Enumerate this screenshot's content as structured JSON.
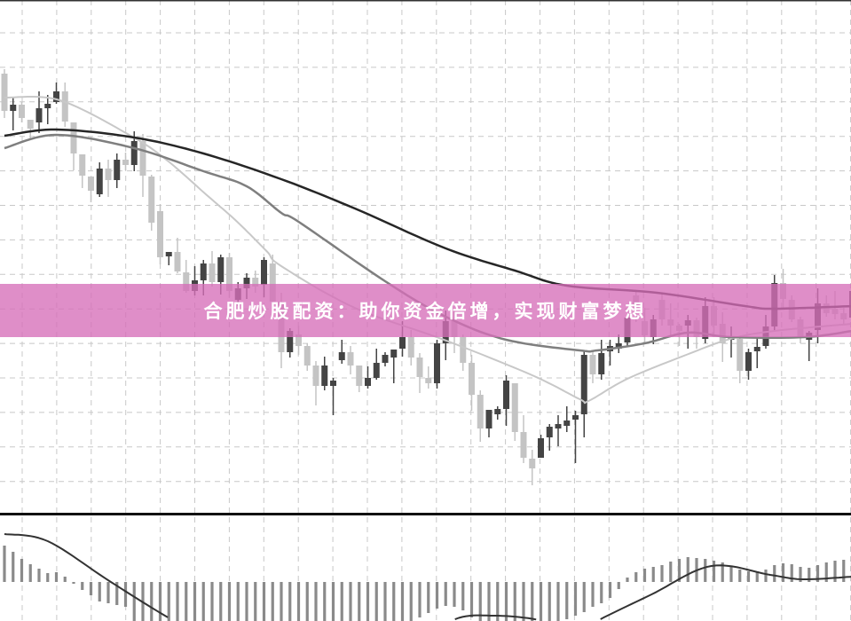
{
  "banner": {
    "text": "合肥炒股配资：助你资金倍增，实现财富梦想",
    "color": "#d66eb9"
  },
  "colors": {
    "bull": "#444444",
    "bear": "#c4c4c4",
    "ma_fast": "#c8c8c8",
    "ma_mid": "#7f7f7f",
    "ma_slow": "#262626",
    "hist": "#8a8a8a",
    "signal": "#333333",
    "grid": "#c8c8c8"
  },
  "chart_data": {
    "type": "candlestick",
    "title": "",
    "xlabel": "",
    "ylabel": "",
    "grid": true,
    "ylim": [
      2.2,
      60
    ],
    "candles_ohlc": [
      [
        51.7,
        52.2,
        46.7,
        47.5
      ],
      [
        47.5,
        49.0,
        45.3,
        48.2
      ],
      [
        48.2,
        48.5,
        46.2,
        46.7
      ],
      [
        46.5,
        46.5,
        44.3,
        45.5
      ],
      [
        46.2,
        49.7,
        45.0,
        47.8
      ],
      [
        47.8,
        49.3,
        46.0,
        48.3
      ],
      [
        48.5,
        50.7,
        48.3,
        49.7
      ],
      [
        49.7,
        50.7,
        45.7,
        46.3
      ],
      [
        46.2,
        46.2,
        40.8,
        42.7
      ],
      [
        42.6,
        42.6,
        38.8,
        40.2
      ],
      [
        40.1,
        40.1,
        37.2,
        38.5
      ],
      [
        38.1,
        41.7,
        37.8,
        41.0
      ],
      [
        41.0,
        42.0,
        37.8,
        39.7
      ],
      [
        39.7,
        42.7,
        38.8,
        42.0
      ],
      [
        42.0,
        42.8,
        40.8,
        41.4
      ],
      [
        41.4,
        45.2,
        40.7,
        44.1
      ],
      [
        44.1,
        44.9,
        37.8,
        40.2
      ],
      [
        40.1,
        40.3,
        34.0,
        34.9
      ],
      [
        36.2,
        37.0,
        30.2,
        31.0
      ],
      [
        31.1,
        31.6,
        30.1,
        31.6
      ],
      [
        31.6,
        33.2,
        29.2,
        29.4
      ],
      [
        29.3,
        30.7,
        27.0,
        27.2
      ],
      [
        27.2,
        30.0,
        26.7,
        28.4
      ],
      [
        28.4,
        30.7,
        26.7,
        30.3
      ],
      [
        30.3,
        31.7,
        27.7,
        28.2
      ],
      [
        28.2,
        31.3,
        26.8,
        31.0
      ],
      [
        31.0,
        31.5,
        26.5,
        27.2
      ],
      [
        26.2,
        28.2,
        25.5,
        27.5
      ],
      [
        27.5,
        29.2,
        26.3,
        28.7
      ],
      [
        28.7,
        29.5,
        27.0,
        27.7
      ],
      [
        27.9,
        31.0,
        26.5,
        30.7
      ],
      [
        30.3,
        31.3,
        25.0,
        26.0
      ],
      [
        26.0,
        27.0,
        18.5,
        20.3
      ],
      [
        20.3,
        23.0,
        19.7,
        22.7
      ],
      [
        22.3,
        23.3,
        20.0,
        21.0
      ],
      [
        21.0,
        21.3,
        18.2,
        18.8
      ],
      [
        18.8,
        19.3,
        14.3,
        16.5
      ],
      [
        16.5,
        19.8,
        16.0,
        18.8
      ],
      [
        16.5,
        17.4,
        13.2,
        17.1
      ],
      [
        19.4,
        21.7,
        19.0,
        20.3
      ],
      [
        20.3,
        21.0,
        17.8,
        18.8
      ],
      [
        18.8,
        18.8,
        15.8,
        16.5
      ],
      [
        16.5,
        18.7,
        16.2,
        17.4
      ],
      [
        17.4,
        20.7,
        17.2,
        19.1
      ],
      [
        19.1,
        20.3,
        18.7,
        20.0
      ],
      [
        19.7,
        20.6,
        16.8,
        20.6
      ],
      [
        20.7,
        23.8,
        19.8,
        22.0
      ],
      [
        22.0,
        22.8,
        18.8,
        19.7
      ],
      [
        19.7,
        20.2,
        15.7,
        17.5
      ],
      [
        17.4,
        18.7,
        16.2,
        16.8
      ],
      [
        16.8,
        21.7,
        16.2,
        21.3
      ],
      [
        21.3,
        25.0,
        19.4,
        23.8
      ],
      [
        23.8,
        25.0,
        20.2,
        22.0
      ],
      [
        22.0,
        22.3,
        18.2,
        19.1
      ],
      [
        19.1,
        20.0,
        13.7,
        15.5
      ],
      [
        15.5,
        16.0,
        10.2,
        11.7
      ],
      [
        11.7,
        13.8,
        10.7,
        13.8
      ],
      [
        13.3,
        14.2,
        12.7,
        13.9
      ],
      [
        13.9,
        17.7,
        12.0,
        17.1
      ],
      [
        16.8,
        16.8,
        10.3,
        11.3
      ],
      [
        11.3,
        13.2,
        7.8,
        8.4
      ],
      [
        8.3,
        9.3,
        5.3,
        7.2
      ],
      [
        8.4,
        11.0,
        8.4,
        10.6
      ],
      [
        10.7,
        12.2,
        9.2,
        11.9
      ],
      [
        11.7,
        13.2,
        9.7,
        12.2
      ],
      [
        12.0,
        14.2,
        11.3,
        12.6
      ],
      [
        12.7,
        13.7,
        7.8,
        13.2
      ],
      [
        13.3,
        20.5,
        10.7,
        20.0
      ],
      [
        20.0,
        20.5,
        16.8,
        17.8
      ],
      [
        17.8,
        21.7,
        17.2,
        20.2
      ],
      [
        20.4,
        21.7,
        18.8,
        21.0
      ],
      [
        20.7,
        22.3,
        20.2,
        21.3
      ],
      [
        21.4,
        24.3,
        21.0,
        24.2
      ],
      [
        26.7,
        27.2,
        23.7,
        25.3
      ],
      [
        23.8,
        25.3,
        21.3,
        22.2
      ],
      [
        22.0,
        24.5,
        21.2,
        24.0
      ],
      [
        26.2,
        27.0,
        23.3,
        24.0
      ],
      [
        24.0,
        25.8,
        22.0,
        23.3
      ],
      [
        23.3,
        23.5,
        21.0,
        22.7
      ],
      [
        23.3,
        24.5,
        20.7,
        23.9
      ],
      [
        23.9,
        24.2,
        20.7,
        22.0
      ],
      [
        21.8,
        26.5,
        21.3,
        25.5
      ],
      [
        25.5,
        26.5,
        22.0,
        23.3
      ],
      [
        23.5,
        24.8,
        19.2,
        21.3
      ],
      [
        21.7,
        23.2,
        19.7,
        22.0
      ],
      [
        21.8,
        22.0,
        16.8,
        18.2
      ],
      [
        18.2,
        20.7,
        17.2,
        20.3
      ],
      [
        20.4,
        22.0,
        18.5,
        20.9
      ],
      [
        21.0,
        24.5,
        20.7,
        23.2
      ],
      [
        23.2,
        29.0,
        22.7,
        28.1
      ],
      [
        28.1,
        29.7,
        25.3,
        26.3
      ],
      [
        26.2,
        26.7,
        23.7,
        24.0
      ],
      [
        24.0,
        24.3,
        21.3,
        22.0
      ],
      [
        21.7,
        22.7,
        19.3,
        22.5
      ],
      [
        22.8,
        27.5,
        21.3,
        25.8
      ],
      [
        25.8,
        26.7,
        24.3,
        24.7
      ],
      [
        25.2,
        27.2,
        24.0,
        24.6
      ],
      [
        24.7,
        25.3,
        23.5,
        24.0
      ],
      [
        24.2,
        27.7,
        23.8,
        27.2
      ]
    ],
    "moving_averages": [
      {
        "key": "ma_fast",
        "points": [
          [
            0,
            49.0
          ],
          [
            6.4,
            48.7
          ],
          [
            14.6,
            44.7
          ],
          [
            18.7,
            42.0
          ],
          [
            23.4,
            38.0
          ],
          [
            26.9,
            35.0
          ],
          [
            30.3,
            31.7
          ],
          [
            32,
            30.0
          ],
          [
            40.5,
            25.3
          ],
          [
            50.8,
            21.7
          ],
          [
            61,
            17.7
          ],
          [
            66.5,
            15.0
          ],
          [
            67.5,
            14.8
          ],
          [
            72,
            17.3
          ],
          [
            78.8,
            20.0
          ],
          [
            83.9,
            21.8
          ],
          [
            89,
            22.7
          ],
          [
            98,
            23.5
          ]
        ]
      },
      {
        "key": "ma_mid",
        "points": [
          [
            0,
            43.3
          ],
          [
            6,
            44.8
          ],
          [
            15,
            43.3
          ],
          [
            23,
            40.7
          ],
          [
            28,
            39.0
          ],
          [
            32,
            36.0
          ],
          [
            34,
            35.0
          ],
          [
            44,
            28.3
          ],
          [
            51,
            24.3
          ],
          [
            58,
            21.7
          ],
          [
            66.5,
            20.5
          ],
          [
            68.5,
            20.5
          ],
          [
            74,
            21.3
          ],
          [
            79,
            22.5
          ],
          [
            84,
            22.0
          ],
          [
            92.5,
            22.0
          ],
          [
            98,
            22.7
          ]
        ]
      },
      {
        "key": "ma_slow",
        "points": [
          [
            0,
            44.7
          ],
          [
            6,
            45.4
          ],
          [
            15,
            44.5
          ],
          [
            23,
            42.7
          ],
          [
            32,
            39.8
          ],
          [
            40.5,
            36.5
          ],
          [
            51,
            32.0
          ],
          [
            59,
            29.5
          ],
          [
            65,
            27.8
          ],
          [
            75.4,
            27.0
          ],
          [
            85.6,
            25.5
          ],
          [
            89,
            25.2
          ],
          [
            98,
            25.5
          ]
        ]
      }
    ],
    "macd": {
      "histogram": [
        4.1,
        3.4,
        2.6,
        2.0,
        1.5,
        1.0,
        1.1,
        0.6,
        -0.2,
        -0.9,
        -1.5,
        -2.2,
        -2.4,
        -2.6,
        -2.8,
        -5.0,
        -5.2,
        -5.5,
        -5.8,
        -6.0,
        -6.2,
        -6.5,
        -6.8,
        -7.0,
        -7.0,
        -7.0,
        -6.8,
        -6.6,
        -6.5,
        -6.3,
        -6.0,
        -6.0,
        -6.2,
        -6.4,
        -6.5,
        -6.5,
        -6.3,
        -6.0,
        -5.8,
        -5.6,
        -5.5,
        -5.4,
        -5.3,
        -5.2,
        -5.0,
        -4.9,
        -4.8,
        -4.6,
        -4.0,
        -3.5,
        -3.0,
        -2.7,
        -2.8,
        -3.2,
        -4.0,
        -5.0,
        -5.2,
        -5.4,
        -5.5,
        -5.5,
        -5.4,
        -5.2,
        -5.0,
        -4.8,
        -4.5,
        -4.2,
        -3.8,
        -3.4,
        -2.8,
        -2.4,
        -1.8,
        -0.8,
        0.5,
        1.1,
        1.5,
        1.7,
        1.9,
        2.3,
        2.6,
        2.8,
        2.7,
        2.6,
        2.4,
        2.2,
        1.8,
        1.4,
        1.2,
        1.2,
        1.4,
        1.9,
        2.1,
        2.0,
        1.7,
        1.6,
        1.9,
        2.2,
        2.4,
        2.5,
        2.5
      ],
      "signal": [
        [
          0,
          5.4
        ],
        [
          5,
          4.6
        ],
        [
          12.3,
          0
        ],
        [
          19.6,
          -4.4
        ],
        [
          30,
          -10
        ],
        [
          45,
          -9
        ],
        [
          51.6,
          -4.4
        ],
        [
          56.6,
          -3.8
        ],
        [
          62.3,
          -4.4
        ],
        [
          66,
          -6
        ],
        [
          68.5,
          -4.4
        ],
        [
          74.8,
          -1.4
        ],
        [
          81.7,
          1.8
        ],
        [
          88.5,
          0.8
        ],
        [
          92.3,
          0.3
        ],
        [
          98,
          0.6
        ]
      ]
    }
  }
}
